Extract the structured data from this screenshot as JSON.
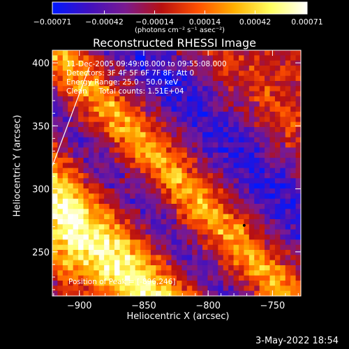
{
  "chart_data": {
    "type": "heatmap",
    "title": "Reconstructed RHESSI Image",
    "xlabel": "Heliocentric X (arcsec)",
    "ylabel": "Heliocentric Y (arcsec)",
    "xlim": [
      -921,
      -728
    ],
    "ylim": [
      215,
      410
    ],
    "xticks": [
      -900,
      -850,
      -800,
      -750
    ],
    "xtick_labels": [
      "−900",
      "−850",
      "−800",
      "−750"
    ],
    "yticks": [
      250,
      300,
      350,
      400
    ],
    "ytick_labels": [
      "250",
      "300",
      "350",
      "400"
    ],
    "colorbar": {
      "min": -0.00071,
      "max": 0.00071,
      "ticks": [
        -0.00071,
        -0.00042,
        -0.00014,
        0.00014,
        0.00042,
        0.00071
      ],
      "tick_labels": [
        "−0.00071",
        "−0.00042",
        "−0.00014",
        "0.00014",
        "0.00042",
        "0.00071"
      ],
      "unit": "(photons cm⁻² s⁻¹ asec⁻²)",
      "colors": [
        "#0018ff",
        "#4010c0",
        "#7a1a90",
        "#b81010",
        "#ff5000",
        "#ffb000",
        "#ffff60",
        "#ffffff"
      ]
    },
    "peak_position": [
      -896,
      246
    ],
    "info_lines": [
      "11-Dec-2005 09:49:08.000 to 09:55:08.000",
      "Detectors: 3F 4F 5F 6F 7F 8F; Att 0",
      "Energy Range: 25.0 - 50.0 keV",
      "Clean     Total counts: 1.51E+04"
    ],
    "peak_label": "Position of Peak = [-896,246]"
  },
  "footer": {
    "date": "3-May-2022 18:54"
  }
}
